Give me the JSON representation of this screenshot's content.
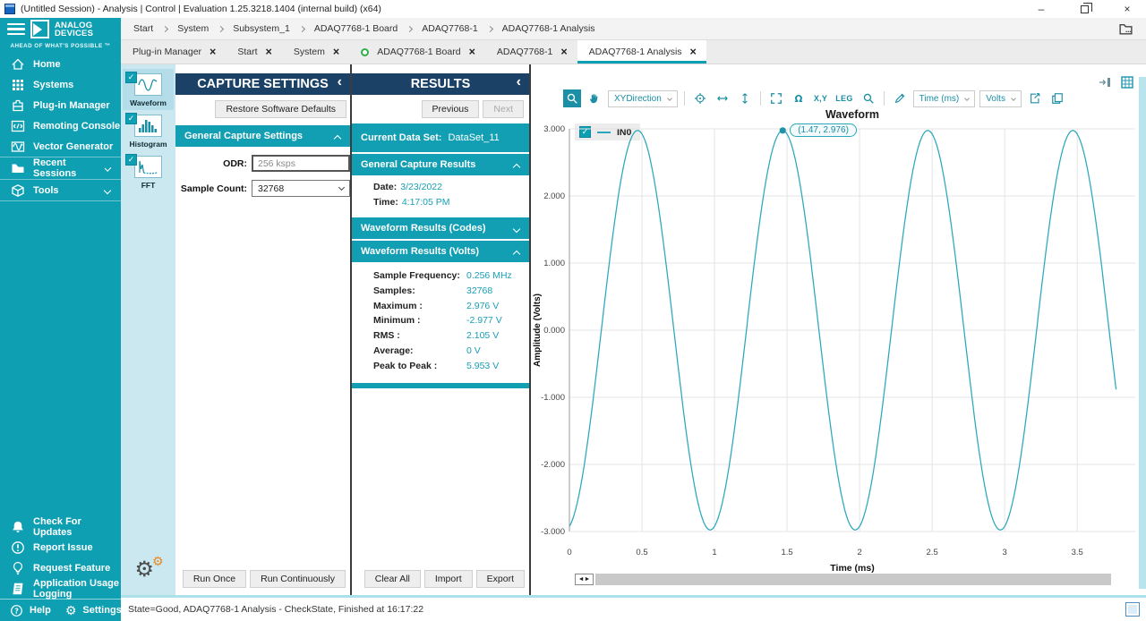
{
  "window": {
    "title": "(Untitled Session) - Analysis | Control | Evaluation 1.25.3218.1404 (internal build) (x64)",
    "controls": {
      "minimize": "–",
      "close": "×"
    }
  },
  "logo": {
    "line1": "ANALOG",
    "line2": "DEVICES",
    "tagline": "AHEAD OF WHAT'S POSSIBLE ™"
  },
  "breadcrumb": {
    "items": [
      "Start",
      "System",
      "Subsystem_1",
      "ADAQ7768-1 Board",
      "ADAQ7768-1",
      "ADAQ7768-1 Analysis"
    ]
  },
  "sidebar": {
    "nav": [
      {
        "icon": "home-icon",
        "label": "Home"
      },
      {
        "icon": "systems-icon",
        "label": "Systems"
      },
      {
        "icon": "plugin-manager-icon",
        "label": "Plug-in Manager"
      },
      {
        "icon": "remoting-console-icon",
        "label": "Remoting Console"
      },
      {
        "icon": "vector-generator-icon",
        "label": "Vector Generator"
      },
      {
        "icon": "recent-sessions-icon",
        "label": "Recent Sessions",
        "expandable": true
      },
      {
        "icon": "tools-icon",
        "label": "Tools",
        "expandable": true
      }
    ],
    "bottom": [
      {
        "icon": "bell-icon",
        "label": "Check For Updates"
      },
      {
        "icon": "report-issue-icon",
        "label": "Report Issue"
      },
      {
        "icon": "lightbulb-icon",
        "label": "Request Feature"
      },
      {
        "icon": "logging-icon",
        "label": "Application Usage Logging"
      }
    ],
    "help_label": "Help",
    "settings_label": "Settings"
  },
  "tabs": [
    {
      "label": "Plug-in Manager"
    },
    {
      "label": "Start"
    },
    {
      "label": "System"
    },
    {
      "label": "ADAQ7768-1 Board",
      "status_dot": true
    },
    {
      "label": "ADAQ7768-1"
    },
    {
      "label": "ADAQ7768-1 Analysis",
      "active": true
    }
  ],
  "tool_strip": {
    "items": [
      {
        "icon": "waveform-tile-icon",
        "label": "Waveform",
        "checked": true,
        "selected": true
      },
      {
        "icon": "histogram-tile-icon",
        "label": "Histogram",
        "checked": true
      },
      {
        "icon": "fft-tile-icon",
        "label": "FFT",
        "checked": true
      }
    ]
  },
  "capture_settings": {
    "title": "CAPTURE SETTINGS",
    "collapse_glyph": "‹",
    "restore_button": "Restore Software Defaults",
    "section": "General Capture Settings",
    "odr_label": "ODR:",
    "odr_value": "256 ksps",
    "sample_count_label": "Sample Count:",
    "sample_count_value": "32768",
    "run_once": "Run Once",
    "run_continuously": "Run Continuously"
  },
  "results": {
    "title": "RESULTS",
    "collapse_glyph": "‹",
    "previous": "Previous",
    "next": "Next",
    "current_data_set_label": "Current Data Set:",
    "current_data_set": "DataSet_11",
    "section_general": "General Capture Results",
    "date_label": "Date:",
    "date": "3/23/2022",
    "time_label": "Time:",
    "time": "4:17:05 PM",
    "section_codes": "Waveform Results (Codes)",
    "section_volts": "Waveform Results (Volts)",
    "volts_rows": [
      {
        "label": "Sample Frequency:",
        "value": "0.256 MHz"
      },
      {
        "label": "Samples:",
        "value": "32768"
      },
      {
        "label": "Maximum :",
        "value": "2.976 V"
      },
      {
        "label": "Minimum :",
        "value": "-2.977 V"
      },
      {
        "label": "RMS :",
        "value": "2.105 V"
      },
      {
        "label": "Average:",
        "value": "0 V"
      },
      {
        "label": "Peak to Peak :",
        "value": "5.953 V"
      }
    ],
    "clear_all": "Clear All",
    "import": "Import",
    "export": "Export"
  },
  "chart": {
    "toolbar": [
      {
        "type": "button",
        "name": "zoom-select-button",
        "icon": "magnifier-icon",
        "active": true
      },
      {
        "type": "button",
        "name": "pan-button",
        "icon": "hand-icon"
      },
      {
        "type": "dropdown",
        "name": "xy-direction-dropdown",
        "label": "XYDirection"
      },
      {
        "type": "sep"
      },
      {
        "type": "button",
        "name": "crosshair-button",
        "icon": "crosshair-icon"
      },
      {
        "type": "button",
        "name": "horizontal-zoom-button",
        "icon": "h-arrows-icon"
      },
      {
        "type": "button",
        "name": "vertical-zoom-button",
        "icon": "v-arrows-icon"
      },
      {
        "type": "sep"
      },
      {
        "type": "button",
        "name": "zoom-extents-button",
        "icon": "expand-icon"
      },
      {
        "type": "button",
        "name": "undo-zoom-button",
        "icon": "omega-icon"
      },
      {
        "type": "label-button",
        "name": "xy-labels-button",
        "label": "X,Y"
      },
      {
        "type": "label-button",
        "name": "legend-toggle-button",
        "label": "LEG"
      },
      {
        "type": "button",
        "name": "search-button",
        "icon": "search-icon"
      },
      {
        "type": "sep"
      },
      {
        "type": "button",
        "name": "annotate-button",
        "icon": "pencil-icon"
      },
      {
        "type": "dropdown",
        "name": "x-units-dropdown",
        "label": "Time (ms)"
      },
      {
        "type": "dropdown",
        "name": "y-units-dropdown",
        "label": "Volts"
      },
      {
        "type": "button",
        "name": "export-image-button",
        "icon": "export-icon"
      },
      {
        "type": "button",
        "name": "copy-chart-button",
        "icon": "copy-icon"
      }
    ],
    "legend": {
      "name": "IN0",
      "checked": true
    },
    "scroll_handle_glyphs": "◄►"
  },
  "chart_data": {
    "type": "line",
    "title": "Waveform",
    "xlabel": "Time (ms)",
    "ylabel": "Amplitude (Volts)",
    "xlim": [
      0,
      3.9
    ],
    "ylim": [
      -3,
      3
    ],
    "grid": true,
    "legend_position": "top-left-inside",
    "x_ticks": [
      {
        "v": 0,
        "label": "0"
      },
      {
        "v": 0.5,
        "label": "0.5"
      },
      {
        "v": 1,
        "label": "1"
      },
      {
        "v": 1.5,
        "label": "1.5"
      },
      {
        "v": 2,
        "label": "2"
      },
      {
        "v": 2.5,
        "label": "2.5"
      },
      {
        "v": 3,
        "label": "3"
      },
      {
        "v": 3.5,
        "label": "3.5"
      }
    ],
    "y_ticks": [
      {
        "v": 3,
        "label": "3.000"
      },
      {
        "v": 2,
        "label": "2.000"
      },
      {
        "v": 1,
        "label": "1.000"
      },
      {
        "v": 0,
        "label": "0.000"
      },
      {
        "v": -1,
        "label": "-1.000"
      },
      {
        "v": -2,
        "label": "-2.000"
      },
      {
        "v": -3,
        "label": "-3.000"
      }
    ],
    "series": [
      {
        "name": "IN0",
        "color": "#2BA7BC",
        "shape": "sine",
        "amplitude_volts": 2.976,
        "frequency_khz": 1.0,
        "peak_at_ms": 1.47,
        "t_start_ms": 0,
        "t_end_ms": 3.77,
        "peaks_at_ms": [
          0.47,
          1.47,
          2.47,
          3.47
        ],
        "troughs_at_ms": [
          0.97,
          1.97,
          2.97
        ]
      }
    ],
    "cursor": {
      "t": 1.47,
      "v": 2.976,
      "label": "(1.47, 2.976)"
    }
  },
  "status_bar": {
    "text": "State=Good, ADAQ7768-1 Analysis - CheckState, Finished at 16:17:22"
  }
}
